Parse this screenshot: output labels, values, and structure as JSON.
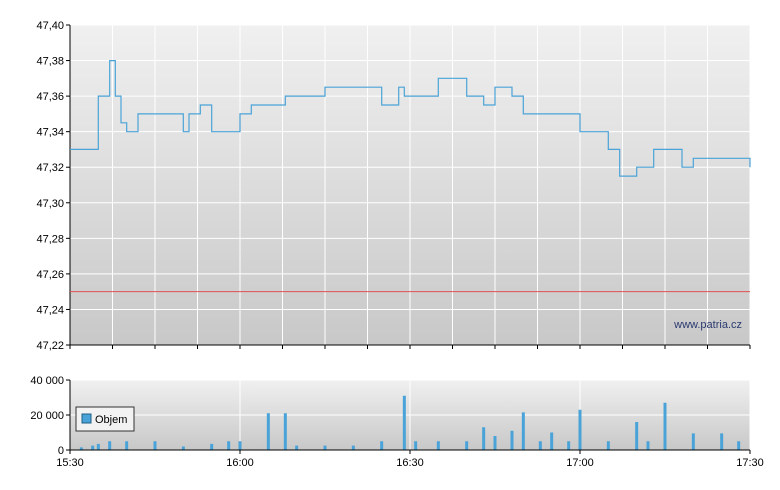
{
  "chart_data": [
    {
      "type": "line",
      "title": "",
      "xlabel": "",
      "ylabel": "",
      "ylim": [
        47.22,
        47.4
      ],
      "y_ticks": [
        "47,22",
        "47,24",
        "47,26",
        "47,28",
        "47,30",
        "47,32",
        "47,34",
        "47,36",
        "47,38",
        "47,40"
      ],
      "grid": true,
      "reference_line": {
        "value": 47.25,
        "color": "#e05050"
      },
      "series": [
        {
          "line_color": "#4aa3d8",
          "x": [
            "15:30",
            "15:35",
            "15:37",
            "15:38",
            "15:39",
            "15:40",
            "15:42",
            "15:50",
            "15:51",
            "15:53",
            "15:55",
            "15:58",
            "16:00",
            "16:02",
            "16:08",
            "16:15",
            "16:18",
            "16:20",
            "16:25",
            "16:28",
            "16:29",
            "16:30",
            "16:35",
            "16:40",
            "16:43",
            "16:45",
            "16:48",
            "16:50",
            "16:55",
            "17:00",
            "17:05",
            "17:07",
            "17:10",
            "17:13",
            "17:18",
            "17:20",
            "17:30"
          ],
          "y": [
            47.33,
            47.36,
            47.38,
            47.36,
            47.345,
            47.34,
            47.35,
            47.34,
            47.35,
            47.355,
            47.34,
            47.34,
            47.35,
            47.355,
            47.36,
            47.365,
            47.365,
            47.365,
            47.355,
            47.365,
            47.36,
            47.36,
            47.37,
            47.36,
            47.355,
            47.365,
            47.36,
            47.35,
            47.35,
            47.34,
            47.33,
            47.315,
            47.32,
            47.33,
            47.32,
            47.325,
            47.32
          ]
        }
      ],
      "watermark": "www.patria.cz"
    },
    {
      "type": "bar",
      "title": "",
      "ylim": [
        0,
        40000
      ],
      "y_ticks": [
        "0",
        "20 000",
        "40 000"
      ],
      "x_ticks": [
        "15:30",
        "16:00",
        "16:30",
        "17:00",
        "17:30"
      ],
      "legend": {
        "label": "Objem",
        "position": "left",
        "color": "#4aa3d8"
      },
      "series": [
        {
          "name": "Objem",
          "x": [
            "15:32",
            "15:34",
            "15:35",
            "15:37",
            "15:40",
            "15:45",
            "15:50",
            "15:55",
            "15:58",
            "16:00",
            "16:05",
            "16:08",
            "16:10",
            "16:15",
            "16:20",
            "16:25",
            "16:29",
            "16:31",
            "16:35",
            "16:40",
            "16:43",
            "16:45",
            "16:48",
            "16:50",
            "16:53",
            "16:55",
            "16:58",
            "17:00",
            "17:05",
            "17:10",
            "17:12",
            "17:15",
            "17:20",
            "17:25",
            "17:28"
          ],
          "values": [
            1500,
            2500,
            3500,
            5000,
            5000,
            5000,
            2000,
            3500,
            5000,
            5000,
            21000,
            21000,
            2500,
            2500,
            2500,
            5000,
            31000,
            5000,
            5000,
            5000,
            13000,
            8000,
            11000,
            21500,
            5000,
            10000,
            5000,
            23000,
            5000,
            16000,
            5000,
            27000,
            9500,
            9500,
            5000
          ]
        }
      ]
    }
  ]
}
